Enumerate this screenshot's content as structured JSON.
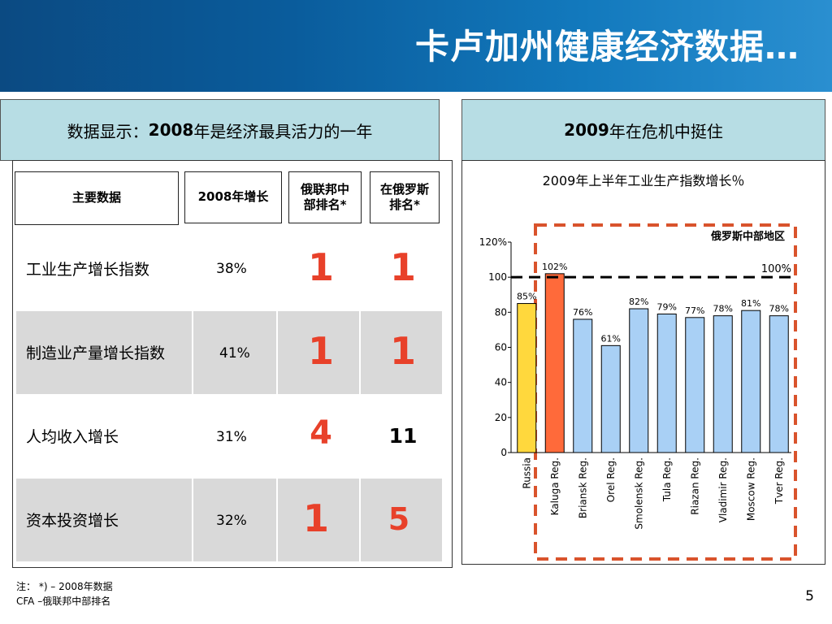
{
  "title": "卡卢加州健康经济数据…",
  "left_header": {
    "prefix": "数据显示：",
    "year": "2008",
    "suffix": "年是经济最具活力的一年"
  },
  "right_header": {
    "year": "2009",
    "suffix": "年在危机中挺住"
  },
  "table": {
    "columns": {
      "key_data": "主要数据",
      "growth_2008": "2008年增长",
      "rank_central": "俄联邦中部排名*",
      "rank_russia": "在俄罗斯排名*"
    },
    "rows": [
      {
        "label": "工业生产增长指数",
        "growth": "38%",
        "rank_central": "1",
        "rank_russia": "1"
      },
      {
        "label": "制造业产量增长指数",
        "growth": "41%",
        "rank_central": "1",
        "rank_russia": "1"
      },
      {
        "label": "人均收入增长",
        "growth": "31%",
        "rank_central": "4",
        "rank_russia": "11"
      },
      {
        "label": "资本投资增长",
        "growth": "32%",
        "rank_central": "1",
        "rank_russia": "5"
      }
    ]
  },
  "footer": {
    "line1": "注：  *) – 2008年数据",
    "line2": "CFA –俄联邦中部排名"
  },
  "page_number": "5",
  "colors": {
    "title_bar": "#0b5a98",
    "header_bg": "#b7dde4",
    "rank_red": "#e8412a",
    "russia_bar": "#ffd83d",
    "kaluga_bar": "#ff6a3a",
    "region_bar": "#a9d0f5",
    "dashed_box": "#d9532c"
  },
  "chart_data": {
    "type": "bar",
    "title": "2009年上半年工业生产指数增长％",
    "categories": [
      "Russia",
      "Kaluga Reg.",
      "Briansk Reg.",
      "Orel Reg.",
      "Smolensk Reg.",
      "Tula Reg.",
      "Riazan Reg.",
      "Vladimir Reg.",
      "Moscow Reg.",
      "Tver Reg."
    ],
    "values": [
      85,
      102,
      76,
      61,
      82,
      79,
      77,
      78,
      81,
      78
    ],
    "value_labels": [
      "85%",
      "102%",
      "76%",
      "61%",
      "82%",
      "79%",
      "77%",
      "78%",
      "81%",
      "78%"
    ],
    "bar_colors": [
      "#ffd83d",
      "#ff6a3a",
      "#a9d0f5",
      "#a9d0f5",
      "#a9d0f5",
      "#a9d0f5",
      "#a9d0f5",
      "#a9d0f5",
      "#a9d0f5",
      "#a9d0f5"
    ],
    "ylim": [
      0,
      120
    ],
    "y_ticks": [
      0,
      20,
      40,
      60,
      80,
      100,
      120
    ],
    "y_tick_labels": [
      "0",
      "20",
      "40",
      "60",
      "80",
      "100",
      "120%"
    ],
    "reference_line": {
      "value": 100,
      "label": "100%"
    },
    "region_box_label": "俄罗斯中部地区",
    "xlabel": "",
    "ylabel": "",
    "grid": false
  }
}
